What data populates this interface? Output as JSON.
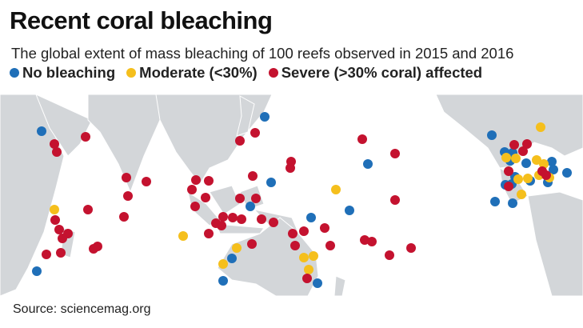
{
  "header": {
    "title": "Recent coral bleaching",
    "subtitle": "The global extent of mass bleaching of 100 reefs observed in 2015 and 2016"
  },
  "legend": [
    {
      "label": "No bleaching",
      "color": "#1f6fb8"
    },
    {
      "label": "Moderate (<30%)",
      "color": "#f5bf1c"
    },
    {
      "label": "Severe (>30% coral) affected",
      "color": "#c4122f"
    }
  ],
  "source": "Source: sciencemag.org"
}
